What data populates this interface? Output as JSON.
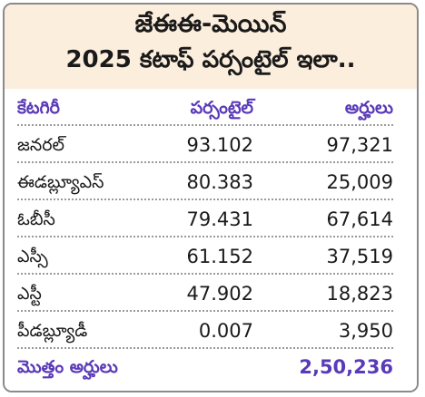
{
  "title": {
    "line1": "జేఈఈ-మెయిన్",
    "line2": "2025 కటాఫ్ పర్సంటైల్ ఇలా.."
  },
  "table": {
    "headers": [
      "కేటగిరీ",
      "పర్సంటైల్",
      "అర్హులు"
    ],
    "rows": [
      {
        "category": "జనరల్",
        "percentile": "93.102",
        "qualified": "97,321"
      },
      {
        "category": "ఈడబ్ల్యూఎస్",
        "percentile": "80.383",
        "qualified": "25,009"
      },
      {
        "category": "ఓబీసీ",
        "percentile": "79.431",
        "qualified": "67,614"
      },
      {
        "category": "ఎస్సీ",
        "percentile": "61.152",
        "qualified": "37,519"
      },
      {
        "category": "ఎస్టీ",
        "percentile": "47.902",
        "qualified": "18,823"
      },
      {
        "category": "పీడబ్ల్యూడీ",
        "percentile": "0.007",
        "qualified": "3,950"
      }
    ],
    "total": {
      "label": "మొత్తం అర్హులు",
      "value": "2,50,236"
    }
  },
  "colors": {
    "header_bg": "#fbeedd",
    "accent": "#5a3ab8",
    "border": "#8a8a8a"
  }
}
